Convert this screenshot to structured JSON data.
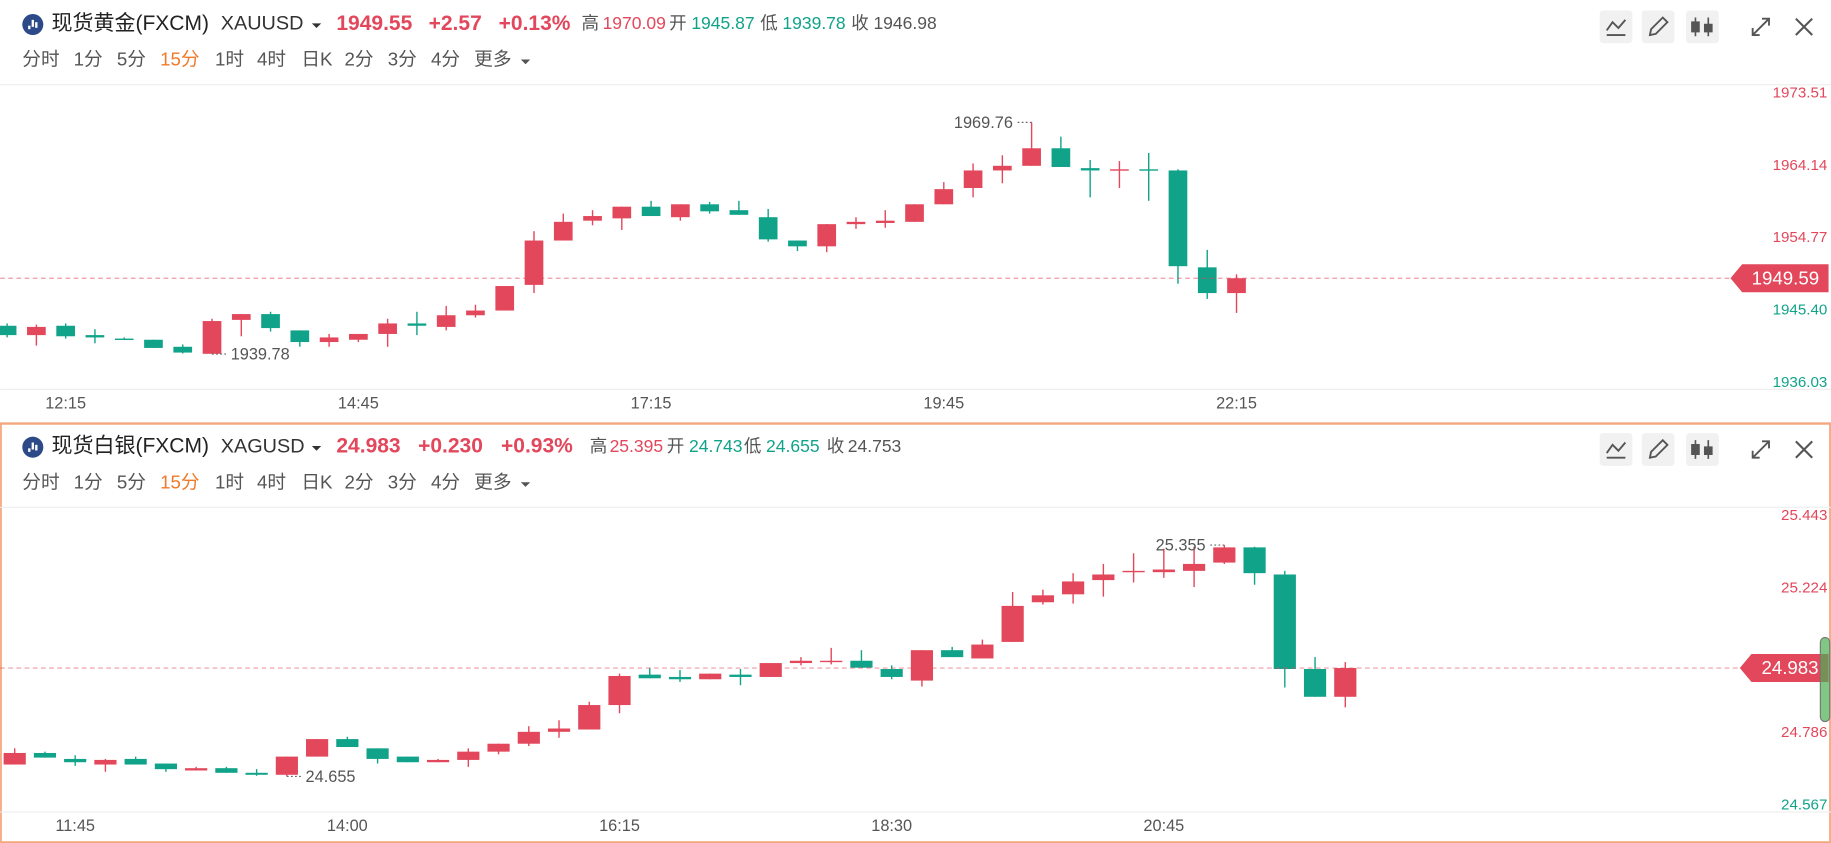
{
  "toolbar": [
    "分时",
    "1分",
    "5分",
    "15分",
    "1时",
    "4时",
    "日K",
    "2分",
    "3分",
    "4分",
    "更多"
  ],
  "active_period": "15分",
  "quote_labels": {
    "high": "高",
    "open": "开",
    "low": "低",
    "close": "收"
  },
  "chart_data": [
    {
      "type": "candlestick",
      "title": "现货黄金(FXCM)",
      "symbol": "XAUUSD",
      "quote": {
        "price": 1949.55,
        "change": "+2.57",
        "change_pct": "+0.13%",
        "high": 1970.09,
        "open": 1945.87,
        "low": 1939.78,
        "prev_close": 1946.98
      },
      "categories": [
        null,
        null,
        "12:15",
        null,
        null,
        null,
        null,
        null,
        null,
        null,
        null,
        null,
        "14:45",
        null,
        null,
        null,
        null,
        null,
        null,
        null,
        null,
        null,
        "17:15",
        null,
        null,
        null,
        null,
        null,
        null,
        null,
        null,
        null,
        "19:45",
        null,
        null,
        null,
        null,
        null,
        null,
        null,
        null,
        null,
        "22:15"
      ],
      "open": [
        1943.44,
        1942.23,
        1943.44,
        1942.23,
        1941.78,
        1941.63,
        1940.72,
        1939.81,
        1944.2,
        1944.95,
        1942.84,
        1941.33,
        1941.63,
        1942.38,
        1943.74,
        1943.29,
        1944.8,
        1945.41,
        1948.73,
        1954.47,
        1957.04,
        1957.34,
        1958.85,
        1957.49,
        1959.16,
        1958.4,
        1957.49,
        1954.47,
        1953.72,
        1956.59,
        1956.74,
        1956.89,
        1959.16,
        1961.27,
        1963.54,
        1964.14,
        1966.41,
        1963.84,
        1963.54,
        1963.69,
        1963.54,
        1951.0,
        1947.67
      ],
      "high": [
        1943.74,
        1943.59,
        1943.74,
        1942.99,
        1941.93,
        1941.63,
        1941.02,
        1944.35,
        1944.95,
        1945.25,
        1942.84,
        1942.38,
        1942.38,
        1944.35,
        1945.25,
        1946.01,
        1946.16,
        1948.58,
        1955.68,
        1957.95,
        1958.4,
        1958.85,
        1959.61,
        1959.16,
        1959.46,
        1959.61,
        1958.55,
        1954.47,
        1956.59,
        1957.49,
        1958.4,
        1959.16,
        1962.03,
        1964.44,
        1965.5,
        1969.76,
        1967.92,
        1964.9,
        1964.75,
        1965.8,
        1963.69,
        1953.26,
        1950.09
      ],
      "low": [
        1941.93,
        1940.87,
        1941.78,
        1941.17,
        1941.63,
        1940.57,
        1939.85,
        1939.78,
        1942.08,
        1942.69,
        1940.72,
        1940.72,
        1941.33,
        1940.72,
        1942.23,
        1942.84,
        1944.5,
        1945.41,
        1947.67,
        1954.47,
        1956.44,
        1955.83,
        1957.64,
        1957.04,
        1957.95,
        1957.8,
        1954.32,
        1953.11,
        1952.96,
        1955.98,
        1956.13,
        1956.89,
        1959.16,
        1960.06,
        1961.88,
        1964.14,
        1963.99,
        1960.06,
        1961.27,
        1959.61,
        1948.88,
        1946.92,
        1945.1
      ],
      "close": [
        1942.23,
        1943.29,
        1942.08,
        1941.93,
        1941.63,
        1940.57,
        1939.97,
        1944.05,
        1944.95,
        1943.14,
        1941.33,
        1941.93,
        1942.38,
        1943.74,
        1943.44,
        1944.8,
        1945.41,
        1948.58,
        1954.47,
        1956.89,
        1957.64,
        1958.85,
        1957.64,
        1959.16,
        1958.25,
        1957.8,
        1954.62,
        1953.72,
        1956.59,
        1956.89,
        1957.04,
        1959.16,
        1961.12,
        1963.54,
        1964.14,
        1966.41,
        1963.99,
        1963.54,
        1963.69,
        1963.54,
        1951.15,
        1947.67,
        1949.59
      ],
      "up_color": "#e2475b",
      "down_color": "#10a38a",
      "ylim": [
        1935.28,
        1974.72
      ],
      "yticks": [
        1936.03,
        {
          "value": 1945.4,
          "label": "1945.40"
        },
        1954.77,
        1964.14,
        1973.51
      ]
    },
    {
      "type": "candlestick",
      "title": "现货白银(FXCM)",
      "symbol": "XAGUSD",
      "quote": {
        "price": 24.983,
        "change": "+0.230",
        "change_pct": "+0.93%",
        "high": 25.395,
        "open": 24.743,
        "low": 24.655,
        "prev_close": 24.753
      },
      "categories": [
        null,
        null,
        "11:45",
        null,
        null,
        null,
        null,
        null,
        null,
        null,
        null,
        "14:00",
        null,
        null,
        null,
        null,
        null,
        null,
        null,
        null,
        "16:15",
        null,
        null,
        null,
        null,
        null,
        null,
        null,
        null,
        "18:30",
        null,
        null,
        null,
        null,
        null,
        null,
        null,
        null,
        "20:45",
        null,
        null,
        null,
        null,
        null,
        null
      ],
      "open": [
        24.691,
        24.726,
        24.708,
        24.691,
        24.708,
        24.694,
        24.673,
        24.68,
        24.666,
        24.66,
        24.715,
        24.768,
        24.74,
        24.715,
        24.698,
        24.705,
        24.73,
        24.754,
        24.79,
        24.797,
        24.871,
        24.963,
        24.956,
        24.949,
        24.963,
        24.956,
        24.998,
        25.001,
        25.005,
        24.98,
        24.945,
        25.037,
        25.012,
        25.062,
        25.182,
        25.206,
        25.249,
        25.273,
        25.273,
        25.277,
        25.302,
        25.348,
        25.266,
        24.98,
        24.896
      ],
      "high": [
        24.74,
        24.73,
        24.719,
        24.708,
        24.715,
        24.694,
        24.684,
        24.684,
        24.677,
        24.715,
        24.768,
        24.775,
        24.74,
        24.715,
        24.708,
        24.74,
        24.754,
        24.807,
        24.825,
        24.881,
        24.966,
        24.984,
        24.977,
        24.966,
        24.98,
        24.998,
        25.016,
        25.044,
        25.037,
        24.991,
        25.037,
        25.047,
        25.069,
        25.213,
        25.22,
        25.27,
        25.298,
        25.33,
        25.344,
        25.35,
        25.355,
        25.35,
        25.277,
        25.016,
        25.001
      ],
      "low": [
        24.691,
        24.712,
        24.687,
        24.669,
        24.691,
        24.669,
        24.673,
        24.666,
        24.657,
        24.655,
        24.715,
        24.744,
        24.694,
        24.698,
        24.698,
        24.684,
        24.722,
        24.747,
        24.772,
        24.797,
        24.846,
        24.952,
        24.941,
        24.949,
        24.931,
        24.956,
        24.991,
        24.994,
        24.984,
        24.949,
        24.927,
        25.016,
        25.012,
        25.062,
        25.175,
        25.178,
        25.199,
        25.242,
        25.256,
        25.228,
        25.298,
        25.235,
        24.924,
        24.896,
        24.864
      ],
      "close": [
        24.726,
        24.712,
        24.698,
        24.705,
        24.691,
        24.677,
        24.68,
        24.666,
        24.66,
        24.715,
        24.768,
        24.744,
        24.708,
        24.698,
        24.705,
        24.73,
        24.754,
        24.79,
        24.8,
        24.871,
        24.959,
        24.952,
        24.949,
        24.966,
        24.956,
        24.998,
        25.005,
        25.005,
        24.984,
        24.956,
        25.037,
        25.016,
        25.054,
        25.171,
        25.203,
        25.245,
        25.266,
        25.277,
        25.281,
        25.298,
        25.348,
        25.27,
        24.98,
        24.896,
        24.983
      ],
      "up_color": "#e2475b",
      "down_color": "#10a38a",
      "ylim": [
        24.549,
        25.471
      ],
      "yticks": [
        24.567,
        24.786,
        25.224,
        25.443
      ]
    }
  ]
}
